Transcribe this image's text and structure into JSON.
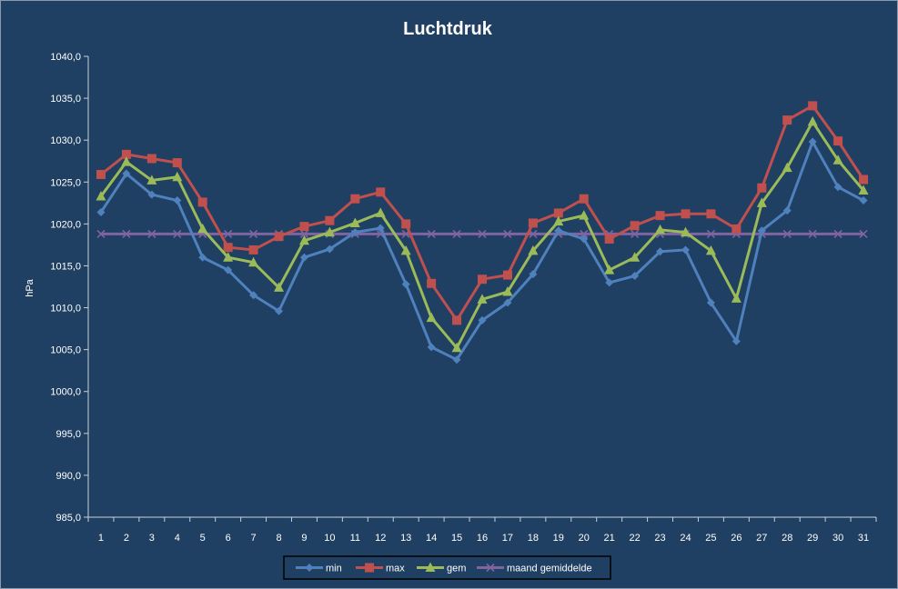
{
  "chart_data": {
    "type": "line",
    "title": "Luchtdruk",
    "xlabel": "",
    "ylabel": "hPa",
    "ylim": [
      985,
      1040
    ],
    "ytick_step": 5,
    "ytick_labels": [
      "985,0",
      "990,0",
      "995,0",
      "1000,0",
      "1005,0",
      "1010,0",
      "1015,0",
      "1020,0",
      "1025,0",
      "1030,0",
      "1035,0",
      "1040,0"
    ],
    "categories": [
      "1",
      "2",
      "3",
      "4",
      "5",
      "6",
      "7",
      "8",
      "9",
      "10",
      "11",
      "12",
      "13",
      "14",
      "15",
      "16",
      "17",
      "18",
      "19",
      "20",
      "21",
      "22",
      "23",
      "24",
      "25",
      "26",
      "27",
      "28",
      "29",
      "30",
      "31"
    ],
    "grid": false,
    "legend_position": "bottom",
    "series": [
      {
        "name": "min",
        "color": "#4f81bd",
        "marker": "diamond",
        "values": [
          1021.4,
          1026.0,
          1023.5,
          1022.8,
          1016.0,
          1014.5,
          1011.5,
          1009.6,
          1016.0,
          1017.0,
          1019.0,
          1019.5,
          1012.8,
          1005.3,
          1003.8,
          1008.5,
          1010.6,
          1014.0,
          1019.2,
          1018.2,
          1013.0,
          1013.8,
          1016.7,
          1016.9,
          1010.6,
          1006.0,
          1019.2,
          1021.6,
          1029.8,
          1024.4,
          1022.8
        ]
      },
      {
        "name": "max",
        "color": "#c0504d",
        "marker": "square",
        "values": [
          1025.9,
          1028.3,
          1027.8,
          1027.3,
          1022.6,
          1017.2,
          1016.9,
          1018.5,
          1019.7,
          1020.4,
          1023.0,
          1023.8,
          1020.0,
          1012.9,
          1008.5,
          1013.4,
          1013.9,
          1020.1,
          1021.3,
          1023.0,
          1018.2,
          1019.8,
          1021.0,
          1021.2,
          1021.2,
          1019.4,
          1024.3,
          1032.4,
          1034.1,
          1029.9,
          1025.3
        ]
      },
      {
        "name": "gem",
        "color": "#9bbb59",
        "marker": "triangle",
        "values": [
          1023.3,
          1027.4,
          1025.2,
          1025.6,
          1019.4,
          1016.0,
          1015.4,
          1012.4,
          1018.0,
          1019.0,
          1020.1,
          1021.3,
          1016.8,
          1008.8,
          1005.2,
          1011.0,
          1011.9,
          1016.8,
          1020.3,
          1021.0,
          1014.5,
          1016.0,
          1019.3,
          1019.0,
          1016.8,
          1011.1,
          1022.5,
          1026.7,
          1032.2,
          1027.6,
          1024.0
        ]
      },
      {
        "name": "maand gemiddelde",
        "color": "#8064a2",
        "marker": "x",
        "values": [
          1018.8,
          1018.8,
          1018.8,
          1018.8,
          1018.8,
          1018.8,
          1018.8,
          1018.8,
          1018.8,
          1018.8,
          1018.8,
          1018.8,
          1018.8,
          1018.8,
          1018.8,
          1018.8,
          1018.8,
          1018.8,
          1018.8,
          1018.8,
          1018.8,
          1018.8,
          1018.8,
          1018.8,
          1018.8,
          1018.8,
          1018.8,
          1018.8,
          1018.8,
          1018.8,
          1018.8
        ]
      }
    ]
  }
}
